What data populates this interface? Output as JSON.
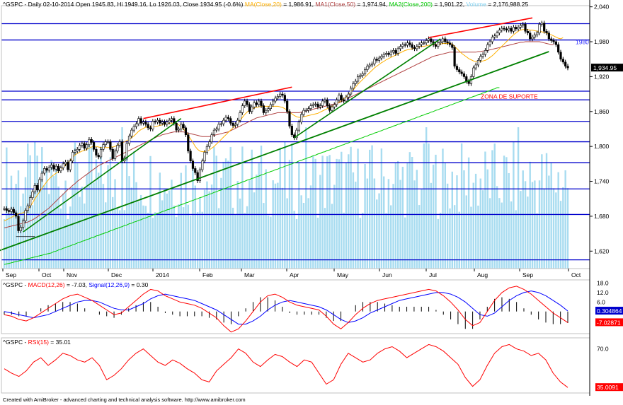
{
  "header": {
    "symbol": "^GSPC",
    "info": "- Daily 02-10-2014 Open 1945.83, Hi 1949.16, Lo 1926.03, Close 1934.95 (-0.6%)",
    "ma20": "MA(Close,20)",
    "ma20_val": " = 1,986.91,",
    "ma50": "MA1(Close,50)",
    "ma50_val": " = 1,974.94,",
    "ma200": "MA2(Close,200)",
    "ma200_val": " = 1,901.22,",
    "volume": "Volume",
    "volume_val": " = 2,176,988.25"
  },
  "macd_header": {
    "symbol": "^GSPC",
    "macd": "MACD(12,26)",
    "macd_val": " = -7.03, ",
    "signal": "Signal(12,26,9)",
    "signal_val": " = 0.30"
  },
  "rsi_header": {
    "symbol": "^GSPC",
    "rsi": "RSI(15)",
    "rsi_val": " = 35.01"
  },
  "annotations": {
    "support_zone": "ZONA DE SUPORTE",
    "level_1980": "1980"
  },
  "footer": "Created with AmiBroker - advanced charting and technical analysis software. http://www.amibroker.com",
  "colors": {
    "candle": "#000000",
    "volume": "#a8dcf0",
    "hline": "#0000cc",
    "trend_green": "#008000",
    "trend_red": "#ff0000",
    "ma20": "#ffb000",
    "ma50": "#b04040",
    "ma200": "#00cc00",
    "macd": "#0000ff",
    "signal": "#ff0000",
    "rsi": "#ff0000",
    "last_price_bg": "#000000",
    "signal_bg": "#0000cc",
    "macd_bg": "#ff0000",
    "rsi_bg": "#ff0000"
  },
  "chart_data": [
    {
      "type": "candlestick",
      "title": "^GSPC - Daily 02-10-2014",
      "x_labels": [
        "Sep",
        "Oct",
        "Nov",
        "Dec",
        "2014",
        "Feb",
        "Mar",
        "Apr",
        "May",
        "Jun",
        "Jul",
        "Aug",
        "Sep",
        "Oct"
      ],
      "y_ticks": [
        1620,
        1680,
        1740,
        1800,
        1860,
        1920,
        1980,
        2040
      ],
      "y_tick_labels": [
        "1,620",
        "1,680",
        "1,740",
        "1,800",
        "1,860",
        "1,920",
        "1,980",
        "2,040"
      ],
      "ylim": [
        1590,
        2042
      ],
      "last_close": 1934.95,
      "last_close_label": "1,934.95",
      "horizontal_levels": [
        2011,
        1983,
        1895,
        1880,
        1843,
        1808,
        1772,
        1727,
        1683,
        1605
      ],
      "close_series": [
        1693,
        1690,
        1688,
        1692,
        1686,
        1680,
        1655,
        1661,
        1672,
        1690,
        1698,
        1712,
        1722,
        1733,
        1725,
        1743,
        1754,
        1762,
        1759,
        1764,
        1768,
        1761,
        1766,
        1758,
        1763,
        1770,
        1773,
        1760,
        1775,
        1790,
        1792,
        1795,
        1802,
        1805,
        1797,
        1803,
        1812,
        1807,
        1795,
        1785,
        1782,
        1795,
        1803,
        1808,
        1808,
        1795,
        1779,
        1792,
        1802,
        1808,
        1775,
        1780,
        1805,
        1818,
        1828,
        1834,
        1839,
        1848,
        1840,
        1842,
        1838,
        1832,
        1830,
        1843,
        1842,
        1845,
        1840,
        1842,
        1838,
        1842,
        1845,
        1848,
        1840,
        1828,
        1830,
        1838,
        1832,
        1820,
        1792,
        1775,
        1762,
        1755,
        1741,
        1760,
        1775,
        1790,
        1800,
        1808,
        1820,
        1828,
        1830,
        1838,
        1839,
        1845,
        1850,
        1848,
        1840,
        1836,
        1838,
        1845,
        1858,
        1870,
        1878,
        1872,
        1860,
        1868,
        1875,
        1872,
        1878,
        1870,
        1858,
        1862,
        1865,
        1872,
        1878,
        1883,
        1886,
        1890,
        1888,
        1878,
        1860,
        1835,
        1820,
        1815,
        1828,
        1842,
        1855,
        1862,
        1862,
        1865,
        1870,
        1872,
        1873,
        1868,
        1870,
        1878,
        1880,
        1870,
        1862,
        1868,
        1872,
        1880,
        1888,
        1880,
        1878,
        1885,
        1890,
        1900,
        1908,
        1912,
        1920,
        1922,
        1925,
        1932,
        1938,
        1940,
        1942,
        1950,
        1948,
        1952,
        1955,
        1958,
        1960,
        1958,
        1962,
        1965,
        1960,
        1968,
        1972,
        1975,
        1974,
        1978,
        1975,
        1970,
        1968,
        1972,
        1975,
        1978,
        1978,
        1982,
        1985,
        1980,
        1975,
        1972,
        1978,
        1980,
        1985,
        1980,
        1978,
        1975,
        1970,
        1938,
        1932,
        1928,
        1925,
        1920,
        1912,
        1908,
        1920,
        1935,
        1940,
        1948,
        1955,
        1958,
        1965,
        1975,
        1980,
        1988,
        1990,
        1995,
        2000,
        2003,
        2002,
        2000,
        2003,
        1998,
        2005,
        2002,
        2005,
        2008,
        2010,
        1998,
        1995,
        1985,
        1988,
        1992,
        1995,
        2010,
        2012,
        1998,
        1995,
        1985,
        1982,
        1980,
        1975,
        1962,
        1950,
        1945,
        1938,
        1935
      ],
      "ma20_series": [
        1672,
        1674,
        1676,
        1678,
        1680,
        1682,
        1684,
        1685,
        1686,
        1689,
        1692,
        1697,
        1703,
        1710,
        1716,
        1722,
        1728,
        1734,
        1739,
        1744,
        1748,
        1751,
        1754,
        1757,
        1760,
        1764,
        1768,
        1772,
        1776,
        1781,
        1785,
        1788,
        1790,
        1792,
        1793,
        1795,
        1797,
        1799,
        1800,
        1800,
        1799,
        1798,
        1798,
        1798,
        1798,
        1799,
        1799,
        1800,
        1802,
        1804,
        1806,
        1808,
        1810,
        1812,
        1815,
        1818,
        1822,
        1826,
        1829,
        1831,
        1833,
        1834,
        1834,
        1834,
        1834,
        1835,
        1836,
        1837,
        1838,
        1839,
        1840,
        1840,
        1840,
        1839,
        1837,
        1834,
        1830,
        1825,
        1819,
        1813,
        1807,
        1800,
        1795,
        1792,
        1791,
        1791,
        1792,
        1794,
        1797,
        1800,
        1804,
        1808,
        1812,
        1816,
        1820,
        1824,
        1828,
        1832,
        1836,
        1840,
        1845,
        1850,
        1855,
        1859,
        1862,
        1864,
        1866,
        1867,
        1868,
        1869,
        1869,
        1869,
        1869,
        1869,
        1869,
        1869,
        1869,
        1868,
        1867,
        1865,
        1862,
        1859,
        1856,
        1853,
        1851,
        1850,
        1850,
        1851,
        1852,
        1853,
        1854,
        1855,
        1856,
        1857,
        1859,
        1861,
        1863,
        1865,
        1867,
        1869,
        1871,
        1873,
        1876,
        1879,
        1882,
        1885,
        1889,
        1893,
        1897,
        1902,
        1907,
        1911,
        1915,
        1919,
        1923,
        1927,
        1931,
        1935,
        1938,
        1941,
        1944,
        1946,
        1949,
        1951,
        1953,
        1955,
        1957,
        1959,
        1961,
        1963,
        1965,
        1966,
        1967,
        1968,
        1969,
        1970,
        1971,
        1972,
        1972,
        1973,
        1974,
        1974,
        1975,
        1975,
        1976,
        1976,
        1977,
        1977,
        1977,
        1977,
        1976,
        1972,
        1968,
        1964,
        1960,
        1957,
        1954,
        1951,
        1949,
        1947,
        1946,
        1946,
        1946,
        1947,
        1948,
        1950,
        1953,
        1956,
        1960,
        1964,
        1968,
        1972,
        1976,
        1980,
        1984,
        1988,
        1992,
        1995,
        1998,
        2000,
        2001,
        2001,
        2001,
        2000,
        2000,
        1999,
        1998,
        1998,
        1997,
        1996,
        1995,
        1993,
        1992,
        1990,
        1988,
        1986,
        1985,
        1987
      ],
      "ma50_series": [
        1660,
        1661,
        1662,
        1663,
        1664,
        1665,
        1666,
        1667,
        1668,
        1669,
        1670,
        1672,
        1674,
        1676,
        1679,
        1682,
        1685,
        1688,
        1691,
        1694,
        1698,
        1702,
        1706,
        1710,
        1714,
        1718,
        1722,
        1726,
        1729,
        1733,
        1736,
        1740,
        1743,
        1746,
        1749,
        1752,
        1755,
        1758,
        1761,
        1764,
        1767,
        1769,
        1771,
        1773,
        1775,
        1777,
        1779,
        1781,
        1783,
        1785,
        1787,
        1789,
        1791,
        1793,
        1795,
        1797,
        1799,
        1801,
        1803,
        1805,
        1807,
        1809,
        1811,
        1813,
        1815,
        1817,
        1818,
        1820,
        1821,
        1822,
        1823,
        1824,
        1825,
        1825,
        1825,
        1825,
        1825,
        1824,
        1823,
        1822,
        1821,
        1820,
        1819,
        1818,
        1817,
        1817,
        1817,
        1817,
        1818,
        1819,
        1820,
        1821,
        1822,
        1823,
        1824,
        1825,
        1827,
        1829,
        1831,
        1833,
        1835,
        1837,
        1839,
        1841,
        1843,
        1845,
        1847,
        1849,
        1850,
        1851,
        1852,
        1853,
        1854,
        1855,
        1856,
        1857,
        1858,
        1858,
        1858,
        1858,
        1858,
        1858,
        1858,
        1858,
        1858,
        1858,
        1859,
        1860,
        1861,
        1862,
        1863,
        1864,
        1865,
        1866,
        1867,
        1868,
        1869,
        1870,
        1871,
        1872,
        1873,
        1874,
        1875,
        1877,
        1879,
        1881,
        1883,
        1885,
        1887,
        1889,
        1891,
        1893,
        1895,
        1897,
        1899,
        1901,
        1903,
        1905,
        1907,
        1909,
        1911,
        1913,
        1915,
        1917,
        1919,
        1921,
        1923,
        1925,
        1927,
        1929,
        1931,
        1933,
        1935,
        1937,
        1939,
        1941,
        1943,
        1945,
        1947,
        1949,
        1951,
        1953,
        1955,
        1956,
        1957,
        1958,
        1959,
        1960,
        1961,
        1962,
        1962,
        1962,
        1962,
        1962,
        1962,
        1962,
        1962,
        1962,
        1962,
        1962,
        1962,
        1963,
        1963,
        1964,
        1964,
        1965,
        1966,
        1967,
        1968,
        1969,
        1970,
        1971,
        1972,
        1973,
        1974,
        1975,
        1976,
        1977,
        1978,
        1979,
        1979,
        1980,
        1980,
        1980,
        1980,
        1980,
        1980,
        1980,
        1979,
        1978,
        1977,
        1976,
        1975,
        1975
      ],
      "ma200_series": [
        1597,
        1598,
        1599,
        1600,
        1601,
        1602,
        1603,
        1604,
        1605,
        1606,
        1607,
        1608,
        1609,
        1610,
        1611,
        1612,
        1613,
        1614,
        1615,
        1616,
        1617,
        1619,
        1620,
        1622,
        1623,
        1625,
        1626,
        1628,
        1629,
        1631,
        1632,
        1634,
        1635,
        1637,
        1638,
        1640,
        1641,
        1643,
        1644,
        1646,
        1647,
        1649,
        1650,
        1652,
        1653,
        1655,
        1656,
        1658,
        1659,
        1661,
        1662,
        1664,
        1665,
        1667,
        1668,
        1670,
        1671,
        1673,
        1674,
        1676,
        1677,
        1679,
        1680,
        1682,
        1683,
        1685,
        1686,
        1688,
        1689,
        1691,
        1692,
        1694,
        1695,
        1697,
        1698,
        1700,
        1701,
        1703,
        1704,
        1706,
        1707,
        1709,
        1710,
        1712,
        1713,
        1715,
        1716,
        1718,
        1719,
        1721,
        1722,
        1724,
        1725,
        1727,
        1728,
        1730,
        1731,
        1733,
        1734,
        1736,
        1737,
        1739,
        1740,
        1742,
        1743,
        1745,
        1746,
        1748,
        1749,
        1751,
        1752,
        1754,
        1755,
        1757,
        1758,
        1760,
        1761,
        1763,
        1764,
        1766,
        1767,
        1769,
        1770,
        1772,
        1773,
        1775,
        1776,
        1778,
        1779,
        1781,
        1782,
        1784,
        1785,
        1787,
        1788,
        1790,
        1791,
        1793,
        1794,
        1796,
        1797,
        1799,
        1800,
        1802,
        1803,
        1805,
        1806,
        1808,
        1809,
        1811,
        1812,
        1814,
        1815,
        1817,
        1818,
        1820,
        1821,
        1823,
        1824,
        1826,
        1827,
        1829,
        1830,
        1832,
        1833,
        1835,
        1836,
        1838,
        1839,
        1841,
        1842,
        1844,
        1845,
        1847,
        1848,
        1850,
        1851,
        1853,
        1854,
        1856,
        1857,
        1859,
        1860,
        1862,
        1863,
        1865,
        1866,
        1868,
        1869,
        1871,
        1872,
        1874,
        1875,
        1877,
        1878,
        1880,
        1881,
        1883,
        1884,
        1886,
        1887,
        1889,
        1890,
        1892,
        1893,
        1895,
        1896,
        1898,
        1899,
        1901,
        1901
      ]
    },
    {
      "type": "line",
      "title": "MACD(12,26)",
      "y_ticks": [
        18,
        12,
        6,
        0
      ],
      "y_tick_labels": [
        "18.0",
        "12.0",
        "6.0",
        "0.0"
      ],
      "ylim": [
        -14,
        20
      ],
      "series": [
        {
          "name": "MACD(12,26)",
          "last": -7.03,
          "values": [
            -2,
            -3,
            -5,
            -6,
            -4,
            -1,
            2,
            5,
            8,
            10,
            11,
            9,
            7,
            4,
            1,
            -2,
            -1,
            3,
            7,
            11,
            14,
            13,
            10,
            8,
            6,
            5,
            4,
            2,
            -1,
            -4,
            -9,
            -13,
            -11,
            -6,
            0,
            6,
            10,
            11,
            9,
            6,
            4,
            3,
            2,
            1,
            -3,
            -8,
            -11,
            -7,
            -2,
            2,
            5,
            7,
            8,
            9,
            10,
            11,
            12,
            13,
            14,
            13,
            10,
            6,
            1,
            -5,
            -9,
            -7,
            0,
            7,
            12,
            15,
            16,
            14,
            11,
            7,
            3,
            -1,
            -4,
            -7
          ]
        },
        {
          "name": "Signal(12,26,9)",
          "last": 0.3,
          "last_label": "0.304864",
          "values": [
            0,
            -1,
            -2,
            -3,
            -4,
            -3,
            -2,
            0,
            2,
            4,
            6,
            7,
            7,
            6,
            4,
            2,
            1,
            1,
            3,
            5,
            8,
            10,
            11,
            10,
            9,
            8,
            7,
            5,
            3,
            1,
            -2,
            -5,
            -8,
            -8,
            -6,
            -3,
            1,
            4,
            6,
            7,
            6,
            5,
            4,
            3,
            1,
            -2,
            -5,
            -7,
            -6,
            -4,
            -1,
            1,
            3,
            5,
            7,
            8,
            9,
            10,
            11,
            12,
            12,
            11,
            9,
            6,
            2,
            -2,
            -3,
            -1,
            3,
            7,
            10,
            12,
            13,
            12,
            10,
            7,
            4,
            0.3
          ]
        }
      ],
      "macd_last_label": "-7.02871"
    },
    {
      "type": "line",
      "title": "RSI(15)",
      "y_ticks": [
        70
      ],
      "y_tick_labels": [
        "70.0"
      ],
      "ylim": [
        30,
        80
      ],
      "series": [
        {
          "name": "RSI(15)",
          "last": 35.01,
          "last_label": "35.0091",
          "values": [
            52,
            48,
            45,
            50,
            58,
            62,
            55,
            60,
            66,
            64,
            60,
            58,
            62,
            55,
            42,
            46,
            52,
            60,
            66,
            70,
            64,
            58,
            55,
            60,
            57,
            52,
            48,
            42,
            40,
            50,
            56,
            62,
            70,
            66,
            58,
            54,
            60,
            65,
            63,
            58,
            54,
            60,
            58,
            48,
            38,
            42,
            56,
            66,
            62,
            58,
            60,
            66,
            70,
            72,
            68,
            62,
            66,
            70,
            74,
            72,
            68,
            62,
            56,
            44,
            36,
            42,
            55,
            66,
            72,
            74,
            70,
            68,
            64,
            66,
            60,
            48,
            40,
            35
          ]
        }
      ]
    }
  ]
}
